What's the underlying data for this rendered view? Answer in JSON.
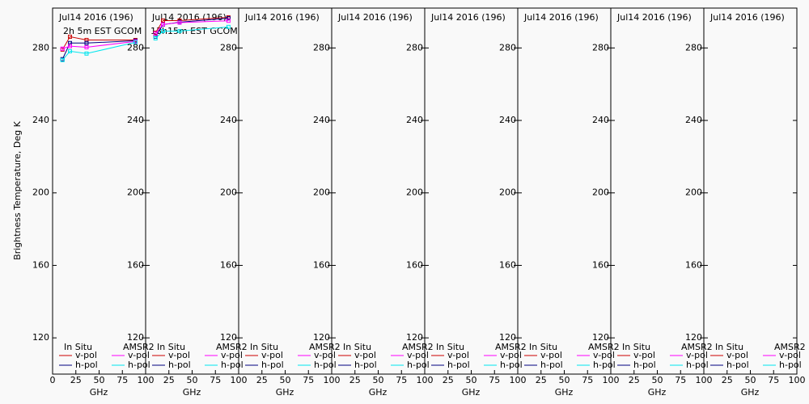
{
  "chart_data": [
    {
      "type": "line",
      "title": "Jul14 2016 (196)",
      "subtitle": "2h 5m EST GCOM",
      "y_label": "Brightness Temperature, Deg K",
      "x_label": "GHz",
      "x": [
        10.65,
        18.7,
        36.5,
        89
      ],
      "xlim": [
        0,
        100
      ],
      "xticks": [
        0,
        25,
        50,
        75,
        100
      ],
      "ylim": [
        100,
        302
      ],
      "yticks": [
        120,
        160,
        200,
        240,
        280
      ],
      "groups": [
        {
          "name": "In Situ",
          "series": [
            {
              "name": "v-pol",
              "color": "#cc0000",
              "values": [
                279.1,
                286.2,
                284.4,
                284.4
              ]
            },
            {
              "name": "h-pol",
              "color": "#000080",
              "values": [
                273.8,
                282.7,
                282.7,
                284
              ]
            }
          ]
        },
        {
          "name": "AMSR2",
          "series": [
            {
              "name": "v-pol",
              "color": "#ff00ff",
              "values": [
                279.6,
                281,
                280.4,
                283.6
              ]
            },
            {
              "name": "h-pol",
              "color": "#00e5ee",
              "values": [
                273.3,
                278.2,
                276.9,
                283.1
              ]
            }
          ]
        }
      ]
    },
    {
      "type": "line",
      "title": "Jul14 2016 (196)",
      "subtitle": "13h15m EST GCOM",
      "x_label": "GHz",
      "x": [
        10.65,
        18.7,
        36.5,
        89
      ],
      "xlim": [
        0,
        100
      ],
      "xticks": [
        25,
        50,
        75,
        100
      ],
      "ylim": [
        100,
        302
      ],
      "yticks": [
        120,
        160,
        200,
        240,
        280
      ],
      "groups": [
        {
          "name": "In Situ",
          "series": [
            {
              "name": "v-pol",
              "color": "#cc0000",
              "values": [
                288.4,
                295.1,
                295.1,
                296.9
              ]
            },
            {
              "name": "h-pol",
              "color": "#000080",
              "values": [
                286.2,
                292.9,
                294.2,
                296.4
              ]
            }
          ]
        },
        {
          "name": "AMSR2",
          "series": [
            {
              "name": "v-pol",
              "color": "#ff00ff",
              "values": [
                288,
                293,
                294,
                295
              ]
            },
            {
              "name": "h-pol",
              "color": "#00e5ee",
              "values": [
                285.3,
                289.3,
                289.3,
                291.6
              ]
            }
          ]
        }
      ]
    },
    {
      "type": "line",
      "title": "Jul14 2016 (196)",
      "x_label": "GHz",
      "x": [],
      "xlim": [
        0,
        100
      ],
      "xticks": [
        25,
        50,
        75,
        100
      ],
      "ylim": [
        100,
        302
      ],
      "yticks": [
        120,
        160,
        200,
        240,
        280
      ],
      "groups": [
        {
          "name": "In Situ",
          "series": [
            {
              "name": "v-pol",
              "color": "#cc0000",
              "values": []
            },
            {
              "name": "h-pol",
              "color": "#000080",
              "values": []
            }
          ]
        },
        {
          "name": "AMSR2",
          "series": [
            {
              "name": "v-pol",
              "color": "#ff00ff",
              "values": []
            },
            {
              "name": "h-pol",
              "color": "#00e5ee",
              "values": []
            }
          ]
        }
      ]
    },
    {
      "type": "line",
      "title": "Jul14 2016 (196)",
      "x_label": "GHz",
      "x": [],
      "xlim": [
        0,
        100
      ],
      "xticks": [
        25,
        50,
        75,
        100
      ],
      "ylim": [
        100,
        302
      ],
      "yticks": [
        120,
        160,
        200,
        240,
        280
      ],
      "groups": [
        {
          "name": "In Situ",
          "series": [
            {
              "name": "v-pol",
              "color": "#cc0000",
              "values": []
            },
            {
              "name": "h-pol",
              "color": "#000080",
              "values": []
            }
          ]
        },
        {
          "name": "AMSR2",
          "series": [
            {
              "name": "v-pol",
              "color": "#ff00ff",
              "values": []
            },
            {
              "name": "h-pol",
              "color": "#00e5ee",
              "values": []
            }
          ]
        }
      ]
    },
    {
      "type": "line",
      "title": "Jul14 2016 (196)",
      "x_label": "GHz",
      "x": [],
      "xlim": [
        0,
        100
      ],
      "xticks": [
        25,
        50,
        75,
        100
      ],
      "ylim": [
        100,
        302
      ],
      "yticks": [
        120,
        160,
        200,
        240,
        280
      ],
      "groups": [
        {
          "name": "In Situ",
          "series": [
            {
              "name": "v-pol",
              "color": "#cc0000",
              "values": []
            },
            {
              "name": "h-pol",
              "color": "#000080",
              "values": []
            }
          ]
        },
        {
          "name": "AMSR2",
          "series": [
            {
              "name": "v-pol",
              "color": "#ff00ff",
              "values": []
            },
            {
              "name": "h-pol",
              "color": "#00e5ee",
              "values": []
            }
          ]
        }
      ]
    },
    {
      "type": "line",
      "title": "Jul14 2016 (196)",
      "x_label": "GHz",
      "x": [],
      "xlim": [
        0,
        100
      ],
      "xticks": [
        25,
        50,
        75,
        100
      ],
      "ylim": [
        100,
        302
      ],
      "yticks": [
        120,
        160,
        200,
        240,
        280
      ],
      "groups": [
        {
          "name": "In Situ",
          "series": [
            {
              "name": "v-pol",
              "color": "#cc0000",
              "values": []
            },
            {
              "name": "h-pol",
              "color": "#000080",
              "values": []
            }
          ]
        },
        {
          "name": "AMSR2",
          "series": [
            {
              "name": "v-pol",
              "color": "#ff00ff",
              "values": []
            },
            {
              "name": "h-pol",
              "color": "#00e5ee",
              "values": []
            }
          ]
        }
      ]
    },
    {
      "type": "line",
      "title": "Jul14 2016 (196)",
      "x_label": "GHz",
      "x": [],
      "xlim": [
        0,
        100
      ],
      "xticks": [
        25,
        50,
        75,
        100
      ],
      "ylim": [
        100,
        302
      ],
      "yticks": [
        120,
        160,
        200,
        240,
        280
      ],
      "groups": [
        {
          "name": "In Situ",
          "series": [
            {
              "name": "v-pol",
              "color": "#cc0000",
              "values": []
            },
            {
              "name": "h-pol",
              "color": "#000080",
              "values": []
            }
          ]
        },
        {
          "name": "AMSR2",
          "series": [
            {
              "name": "v-pol",
              "color": "#ff00ff",
              "values": []
            },
            {
              "name": "h-pol",
              "color": "#00e5ee",
              "values": []
            }
          ]
        }
      ]
    },
    {
      "type": "line",
      "title": "Jul14 2016 (196)",
      "x_label": "GHz",
      "x": [],
      "xlim": [
        0,
        100
      ],
      "xticks": [
        25,
        50,
        75,
        100
      ],
      "ylim": [
        100,
        302
      ],
      "yticks": [
        120,
        160,
        200,
        240,
        280
      ],
      "groups": [
        {
          "name": "In Situ",
          "series": [
            {
              "name": "v-pol",
              "color": "#cc0000",
              "values": []
            },
            {
              "name": "h-pol",
              "color": "#000080",
              "values": []
            }
          ]
        },
        {
          "name": "AMSR2",
          "series": [
            {
              "name": "v-pol",
              "color": "#ff00ff",
              "values": []
            },
            {
              "name": "h-pol",
              "color": "#00e5ee",
              "values": []
            }
          ]
        }
      ]
    }
  ]
}
